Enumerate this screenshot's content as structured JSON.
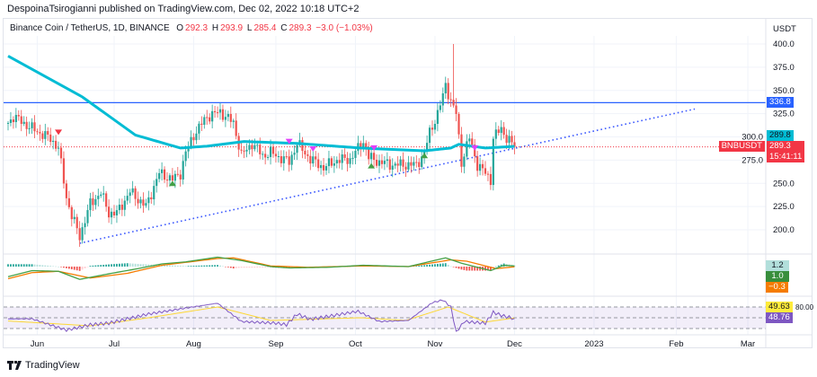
{
  "header": {
    "published": "DespoinaTsirogianni published on TradingView.com, Dec 02, 2022 10:18 UTC+2"
  },
  "legend": {
    "symbol": "Binance Coin / TetherUS, 1D, BINANCE",
    "o_label": "O",
    "o": "292.3",
    "h_label": "H",
    "h": "293.9",
    "l_label": "L",
    "l": "285.4",
    "c_label": "C",
    "c": "289.3",
    "change": "−3.0 (−1.03%)"
  },
  "price_axis": {
    "currency": "USDT"
  },
  "tags": {
    "hline": "336.8",
    "ma": "289.8",
    "symbol": "BNBUSDT",
    "last": "289.3",
    "countdown": "15:41:11",
    "macd_hist": "1.2",
    "macd": "1.0",
    "signal": "−0.3",
    "rsi_ma": "49.63",
    "rsi": "48.76",
    "rsi_upper": "80.00"
  },
  "branding": {
    "logo_text": "TradingView"
  },
  "colors": {
    "up": "#26a69a",
    "down": "#ef5350",
    "ma": "#00bcd4",
    "hline": "#2962ff",
    "trend": "#3d5afe",
    "macd": "#43a047",
    "signal": "#f57c00",
    "rsi": "#7e57c2",
    "rsi_ma": "#fdd835"
  },
  "chart_data": {
    "type": "candlestick",
    "title": "Binance Coin / TetherUS, 1D, BINANCE",
    "ylabel": "USDT",
    "ylim": [
      180,
      410
    ],
    "yticks": [
      "400.0",
      "375.0",
      "350.0",
      "325.0",
      "300.0",
      "275.0",
      "250.0",
      "225.0",
      "200.0"
    ],
    "ytick_values": [
      400,
      375,
      350,
      325,
      300,
      275,
      250,
      225,
      200
    ],
    "x_unit": "days since May 21 2022",
    "months": [
      {
        "label": "Jun",
        "day": 11
      },
      {
        "label": "Jul",
        "day": 40
      },
      {
        "label": "Aug",
        "day": 70
      },
      {
        "label": "Sep",
        "day": 101
      },
      {
        "label": "Oct",
        "day": 131
      },
      {
        "label": "Nov",
        "day": 161
      },
      {
        "label": "Dec",
        "day": 191
      },
      {
        "label": "2023",
        "day": 221
      },
      {
        "label": "Feb",
        "day": 252
      },
      {
        "label": "Mar",
        "day": 279
      }
    ],
    "close_keyframes": [
      [
        0,
        315
      ],
      [
        2,
        322
      ],
      [
        9,
        309
      ],
      [
        16,
        298
      ],
      [
        19,
        288
      ],
      [
        22,
        235
      ],
      [
        24,
        215
      ],
      [
        27,
        193
      ],
      [
        31,
        228
      ],
      [
        35,
        240
      ],
      [
        38,
        218
      ],
      [
        41,
        218
      ],
      [
        46,
        241
      ],
      [
        52,
        225
      ],
      [
        57,
        261
      ],
      [
        62,
        254
      ],
      [
        65,
        261
      ],
      [
        67,
        283
      ],
      [
        70,
        302
      ],
      [
        75,
        322
      ],
      [
        80,
        327
      ],
      [
        85,
        315
      ],
      [
        88,
        280
      ],
      [
        92,
        293
      ],
      [
        96,
        280
      ],
      [
        99,
        283
      ],
      [
        106,
        273
      ],
      [
        109,
        293
      ],
      [
        114,
        276
      ],
      [
        119,
        267
      ],
      [
        124,
        275
      ],
      [
        129,
        276
      ],
      [
        134,
        295
      ],
      [
        136,
        278
      ],
      [
        140,
        273
      ],
      [
        145,
        270
      ],
      [
        150,
        270
      ],
      [
        154,
        270
      ],
      [
        157,
        283
      ],
      [
        159,
        305
      ],
      [
        162,
        325
      ],
      [
        164,
        344
      ],
      [
        165,
        357
      ],
      [
        167,
        338
      ],
      [
        169,
        325
      ],
      [
        171,
        273
      ],
      [
        174,
        299
      ],
      [
        177,
        270
      ],
      [
        180,
        261
      ],
      [
        182,
        254
      ],
      [
        183,
        299
      ],
      [
        186,
        309
      ],
      [
        188,
        299
      ],
      [
        191,
        289.3
      ]
    ],
    "spike": {
      "day": 168,
      "high": 400
    },
    "ma_keyframes": [
      [
        0,
        387
      ],
      [
        28,
        343
      ],
      [
        48,
        302
      ],
      [
        65,
        288
      ],
      [
        75,
        290
      ],
      [
        89,
        295
      ],
      [
        109,
        293
      ],
      [
        133,
        288
      ],
      [
        157,
        285
      ],
      [
        167,
        288
      ],
      [
        170,
        292
      ],
      [
        180,
        288
      ],
      [
        191,
        289.8
      ]
    ],
    "horizontal_line": 336.8,
    "last_price": 289.3,
    "trendline": [
      [
        27,
        185.5
      ],
      [
        259,
        330
      ]
    ],
    "signals": [
      {
        "type": "sell",
        "day": 19,
        "price": 305,
        "color": "#f23645"
      },
      {
        "type": "sell",
        "day": 106,
        "price": 295,
        "color": "#e040fb"
      },
      {
        "type": "sell",
        "day": 115,
        "price": 287,
        "color": "#e040fb"
      },
      {
        "type": "sell",
        "day": 138,
        "price": 288,
        "color": "#e040fb"
      },
      {
        "type": "sell",
        "day": 176,
        "price": 288,
        "color": "#e040fb"
      },
      {
        "type": "buy",
        "day": 62,
        "price": 250,
        "color": "#43a047"
      },
      {
        "type": "buy",
        "day": 137,
        "price": 269,
        "color": "#43a047"
      },
      {
        "type": "buy",
        "day": 157,
        "price": 280,
        "color": "#43a047"
      }
    ],
    "macd": {
      "macd_keyframes": [
        [
          0,
          -15
        ],
        [
          9,
          -6
        ],
        [
          19,
          -7
        ],
        [
          27,
          -19
        ],
        [
          39,
          -10
        ],
        [
          49,
          -3
        ],
        [
          58,
          4
        ],
        [
          67,
          7
        ],
        [
          79,
          14
        ],
        [
          88,
          9
        ],
        [
          99,
          0
        ],
        [
          106,
          -2
        ],
        [
          121,
          -1
        ],
        [
          134,
          2
        ],
        [
          151,
          0
        ],
        [
          165,
          13
        ],
        [
          171,
          5
        ],
        [
          182,
          -6
        ],
        [
          187,
          2
        ],
        [
          191,
          1.0
        ]
      ],
      "signal_keyframes": [
        [
          0,
          -18
        ],
        [
          9,
          -9
        ],
        [
          19,
          -7
        ],
        [
          31,
          -17
        ],
        [
          45,
          -10
        ],
        [
          58,
          2
        ],
        [
          79,
          12
        ],
        [
          85,
          13
        ],
        [
          99,
          1
        ],
        [
          113,
          -1
        ],
        [
          134,
          1
        ],
        [
          151,
          0
        ],
        [
          167,
          10
        ],
        [
          173,
          8
        ],
        [
          184,
          -3
        ],
        [
          191,
          -0.3
        ]
      ]
    },
    "rsi": {
      "levels": [
        70,
        50,
        30
      ],
      "rsi_keyframes": [
        [
          0,
          48
        ],
        [
          9,
          48
        ],
        [
          22,
          27
        ],
        [
          31,
          37
        ],
        [
          38,
          40
        ],
        [
          53,
          57
        ],
        [
          67,
          68
        ],
        [
          79,
          77
        ],
        [
          88,
          43
        ],
        [
          101,
          40
        ],
        [
          105,
          37
        ],
        [
          109,
          57
        ],
        [
          114,
          47
        ],
        [
          132,
          62
        ],
        [
          140,
          43
        ],
        [
          151,
          45
        ],
        [
          160,
          78
        ],
        [
          164,
          83
        ],
        [
          167,
          70
        ],
        [
          169,
          23
        ],
        [
          172,
          43
        ],
        [
          180,
          40
        ],
        [
          183,
          60
        ],
        [
          187,
          53
        ],
        [
          191,
          48.76
        ]
      ],
      "ma_keyframes": [
        [
          0,
          44
        ],
        [
          31,
          35
        ],
        [
          53,
          50
        ],
        [
          79,
          70
        ],
        [
          99,
          45
        ],
        [
          133,
          50
        ],
        [
          150,
          45
        ],
        [
          166,
          70
        ],
        [
          180,
          42
        ],
        [
          191,
          49.63
        ]
      ]
    }
  }
}
